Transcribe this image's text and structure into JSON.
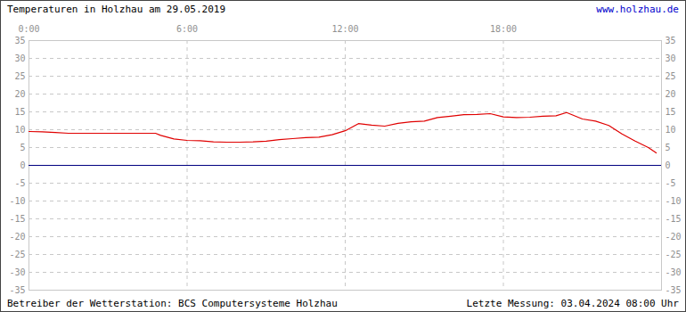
{
  "chart_data": {
    "type": "line",
    "title": "Temperaturen in Holzhau am 29.05.2019",
    "annotations": [
      "www.holzhau.de",
      "Betreiber der Wetterstation: BCS Computersysteme Holzhau",
      "Letzte Messung: 03.04.2024 08:00 Uhr"
    ],
    "x": [
      0,
      0.5,
      1,
      1.5,
      2,
      2.5,
      3,
      3.5,
      4,
      4.5,
      4.8,
      5,
      5.5,
      6,
      6.5,
      7,
      7.5,
      8,
      8.5,
      9,
      9.5,
      10,
      10.5,
      11,
      11.5,
      12,
      12.5,
      13,
      13.5,
      14,
      14.5,
      15,
      15.5,
      16,
      16.5,
      17,
      17.5,
      18,
      18.5,
      19,
      19.5,
      20,
      20.4,
      21,
      21.5,
      22,
      22.5,
      23,
      23.5,
      23.8
    ],
    "values": [
      9.5,
      9.4,
      9.2,
      9.0,
      9.0,
      9.0,
      9.0,
      9.0,
      9.0,
      9.0,
      9.0,
      8.4,
      7.4,
      7.0,
      6.9,
      6.6,
      6.5,
      6.5,
      6.6,
      6.8,
      7.2,
      7.5,
      7.8,
      7.9,
      8.6,
      9.7,
      11.7,
      11.3,
      11.0,
      11.8,
      12.2,
      12.4,
      13.4,
      13.8,
      14.2,
      14.3,
      14.5,
      13.6,
      13.4,
      13.5,
      13.8,
      13.9,
      14.8,
      13.0,
      12.4,
      11.2,
      8.8,
      6.8,
      5.0,
      3.5
    ],
    "color": "#e00000",
    "xlim": [
      0,
      24
    ],
    "xticks": [
      {
        "value": 0,
        "label": "0:00"
      },
      {
        "value": 6,
        "label": "6:00"
      },
      {
        "value": 12,
        "label": "12:00"
      },
      {
        "value": 18,
        "label": "18:00"
      }
    ],
    "ylim": [
      -35,
      35
    ],
    "yticks": [
      -35,
      -30,
      -25,
      -20,
      -15,
      -10,
      -5,
      0,
      5,
      10,
      15,
      20,
      25,
      30,
      35
    ],
    "grid": true
  }
}
